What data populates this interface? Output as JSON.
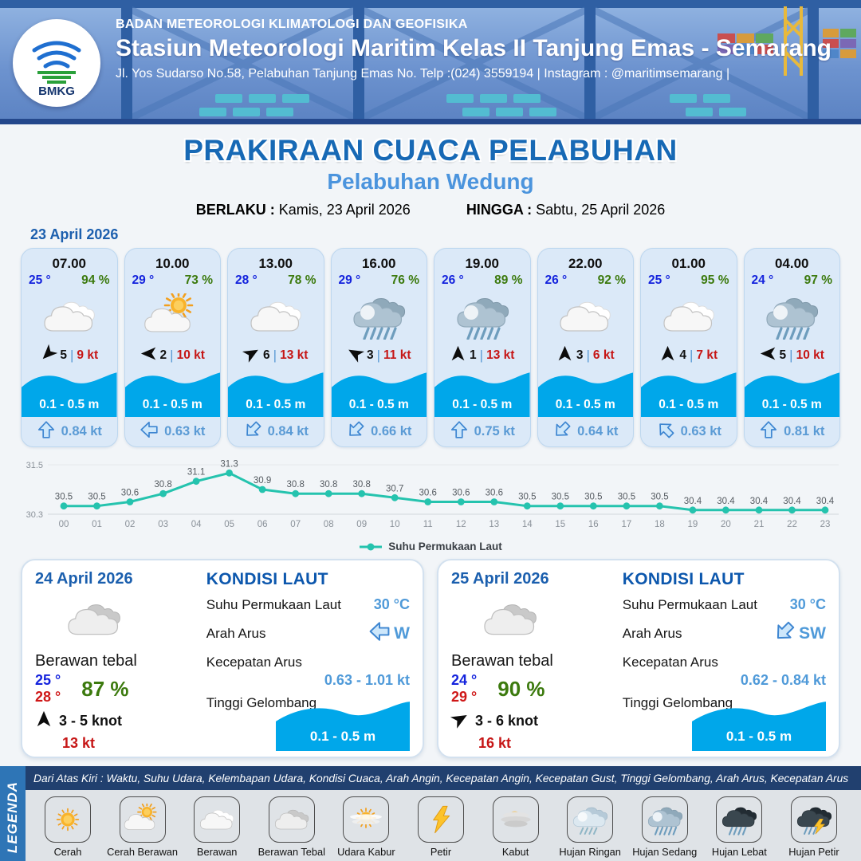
{
  "header": {
    "logo_text": "BMKG",
    "line1": "BADAN METEOROLOGI KLIMATOLOGI DAN GEOFISIKA",
    "line2": "Stasiun Meteorologi Maritim Kelas II Tanjung Emas - Semarang",
    "line3": "Jl. Yos Sudarso No.58, Pelabuhan Tanjung Emas No. Telp :(024) 3559194 | Instagram : @maritimsemarang |"
  },
  "title": {
    "main": "PRAKIRAAN CUACA PELABUHAN",
    "subtitle": "Pelabuhan Wedung",
    "berlaku_label": "BERLAKU :",
    "berlaku_value": "Kamis, 23 April 2026",
    "hingga_label": "HINGGA :",
    "hingga_value": "Sabtu, 25 April 2026"
  },
  "forecast": {
    "date": "23 April 2026",
    "cards": [
      {
        "time": "07.00",
        "temp": "25 °",
        "humidity": "94 %",
        "icon": "berawan",
        "wind_dir_deg": 225,
        "wind_val": "5",
        "wind_speed": "9 kt",
        "wave": "0.1 - 0.5 m",
        "current_dir_deg": 0,
        "current_speed": "0.84 kt"
      },
      {
        "time": "10.00",
        "temp": "29 °",
        "humidity": "73 %",
        "icon": "cerah-berawan",
        "wind_dir_deg": 270,
        "wind_val": "2",
        "wind_speed": "10 kt",
        "wave": "0.1 - 0.5 m",
        "current_dir_deg": 270,
        "current_speed": "0.63 kt"
      },
      {
        "time": "13.00",
        "temp": "28 °",
        "humidity": "78 %",
        "icon": "berawan",
        "wind_dir_deg": 60,
        "wind_val": "6",
        "wind_speed": "13 kt",
        "wave": "0.1 - 0.5 m",
        "current_dir_deg": 225,
        "current_speed": "0.84 kt"
      },
      {
        "time": "16.00",
        "temp": "29 °",
        "humidity": "76 %",
        "icon": "hujan-sedang",
        "wind_dir_deg": 300,
        "wind_val": "3",
        "wind_speed": "11 kt",
        "wave": "0.1 - 0.5 m",
        "current_dir_deg": 225,
        "current_speed": "0.66 kt"
      },
      {
        "time": "19.00",
        "temp": "26 °",
        "humidity": "89 %",
        "icon": "hujan-sedang",
        "wind_dir_deg": 0,
        "wind_val": "1",
        "wind_speed": "13 kt",
        "wave": "0.1 - 0.5 m",
        "current_dir_deg": 0,
        "current_speed": "0.75 kt"
      },
      {
        "time": "22.00",
        "temp": "26 °",
        "humidity": "92 %",
        "icon": "berawan",
        "wind_dir_deg": 0,
        "wind_val": "3",
        "wind_speed": "6 kt",
        "wave": "0.1 - 0.5 m",
        "current_dir_deg": 225,
        "current_speed": "0.64 kt"
      },
      {
        "time": "01.00",
        "temp": "25 °",
        "humidity": "95 %",
        "icon": "berawan",
        "wind_dir_deg": 0,
        "wind_val": "4",
        "wind_speed": "7 kt",
        "wave": "0.1 - 0.5 m",
        "current_dir_deg": 315,
        "current_speed": "0.63 kt"
      },
      {
        "time": "04.00",
        "temp": "24 °",
        "humidity": "97 %",
        "icon": "hujan-sedang",
        "wind_dir_deg": 270,
        "wind_val": "5",
        "wind_speed": "10 kt",
        "wave": "0.1 - 0.5 m",
        "current_dir_deg": 0,
        "current_speed": "0.81 kt"
      }
    ]
  },
  "chart_data": {
    "type": "line",
    "x": [
      "00",
      "01",
      "02",
      "03",
      "04",
      "05",
      "06",
      "07",
      "08",
      "09",
      "10",
      "11",
      "12",
      "13",
      "14",
      "15",
      "16",
      "17",
      "18",
      "19",
      "20",
      "21",
      "22",
      "23"
    ],
    "series": [
      {
        "name": "Suhu Permukaan Laut",
        "values": [
          30.5,
          30.5,
          30.6,
          30.8,
          31.1,
          31.3,
          30.9,
          30.8,
          30.8,
          30.8,
          30.7,
          30.6,
          30.6,
          30.6,
          30.5,
          30.5,
          30.5,
          30.5,
          30.5,
          30.4,
          30.4,
          30.4,
          30.4,
          30.4
        ]
      }
    ],
    "ylim": [
      30.3,
      31.5
    ],
    "yticks": [
      30.3,
      31.5
    ],
    "line_color": "#25c3ae",
    "legend_position": "bottom",
    "grid": true
  },
  "daily": [
    {
      "date": "24 April 2026",
      "icon": "berawan-tebal",
      "condition": "Berawan tebal",
      "temp_min": "25 °",
      "temp_max": "28 °",
      "humidity": "87 %",
      "wind_dir_deg": 0,
      "wind_range": "3  - 5 knot",
      "gust": "13 kt",
      "sea": {
        "header": "KONDISI LAUT",
        "sst_label": "Suhu Permukaan Laut",
        "sst": "30 °C",
        "current_dir_label": "Arah Arus",
        "current_dir": "W",
        "current_dir_deg": 270,
        "current_speed_label": "Kecepatan Arus",
        "current_speed": "0.63 - 1.01 kt",
        "wave_label": "Tinggi Gelombang",
        "wave": "0.1 - 0.5 m"
      }
    },
    {
      "date": "25 April 2026",
      "icon": "berawan-tebal",
      "condition": "Berawan tebal",
      "temp_min": "24 °",
      "temp_max": "29 °",
      "humidity": "90 %",
      "wind_dir_deg": 60,
      "wind_range": "3  - 6 knot",
      "gust": "16 kt",
      "sea": {
        "header": "KONDISI LAUT",
        "sst_label": "Suhu Permukaan Laut",
        "sst": "30 °C",
        "current_dir_label": "Arah Arus",
        "current_dir": "SW",
        "current_dir_deg": 225,
        "current_speed_label": "Kecepatan Arus",
        "current_speed": "0.62 - 0.84 kt",
        "wave_label": "Tinggi Gelombang",
        "wave": "0.1 - 0.5 m"
      }
    }
  ],
  "legend": {
    "vertical_label": "LEGENDA",
    "note": "Dari Atas Kiri : Waktu, Suhu Udara, Kelembapan Udara, Kondisi Cuaca, Arah Angin, Kecepatan Angin, Kecepatan Gust, Tinggi Gelombang, Arah Arus, Kecepatan Arus",
    "items": [
      {
        "label": "Cerah",
        "icon": "cerah"
      },
      {
        "label": "Cerah Berawan",
        "icon": "cerah-berawan"
      },
      {
        "label": "Berawan",
        "icon": "berawan"
      },
      {
        "label": "Berawan Tebal",
        "icon": "berawan-tebal"
      },
      {
        "label": "Udara Kabur",
        "icon": "udara-kabur"
      },
      {
        "label": "Petir",
        "icon": "petir"
      },
      {
        "label": "Kabut",
        "icon": "kabut"
      },
      {
        "label": "Hujan Ringan",
        "icon": "hujan-ringan"
      },
      {
        "label": "Hujan Sedang",
        "icon": "hujan-sedang"
      },
      {
        "label": "Hujan Lebat",
        "icon": "hujan-lebat"
      },
      {
        "label": "Hujan Petir",
        "icon": "hujan-petir"
      }
    ]
  },
  "colors": {
    "title_blue": "#1769b5",
    "subtitle_blue": "#4b94dd",
    "temp_blue": "#1423dd",
    "humidity_green": "#3c7a0e",
    "speed_red": "#c61616",
    "wave_blue": "#00a7ea",
    "current_blue": "#5b9bd5",
    "chart_teal": "#25c3ae",
    "legend_bar_blue": "#2e75b6",
    "note_navy": "#21406f",
    "card_bg": "#dbe9f8"
  }
}
